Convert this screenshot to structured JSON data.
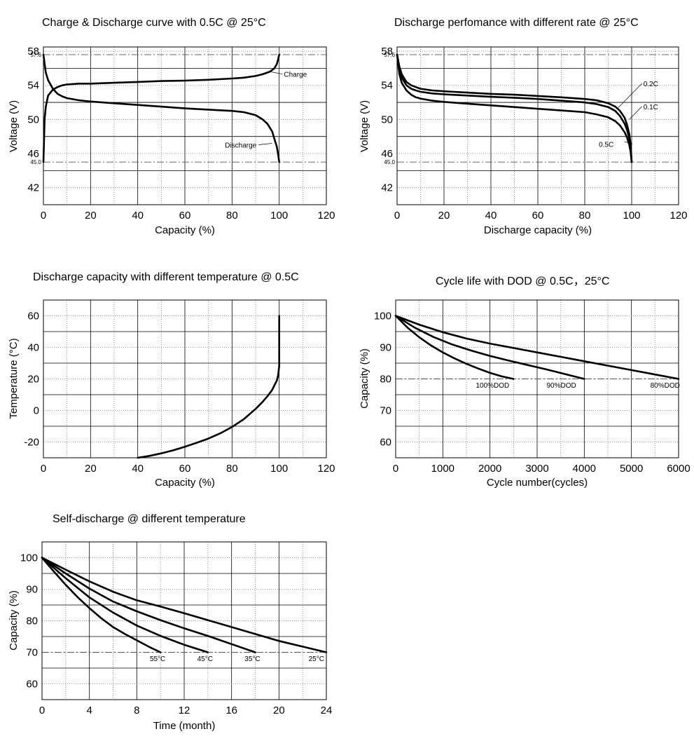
{
  "chart_data": [
    {
      "id": "c1",
      "type": "line",
      "title": "Charge & Discharge curve with 0.5C @ 25°C",
      "xlabel": "Capacity (%)",
      "ylabel": "Voltage (V)",
      "xlim": [
        0,
        120
      ],
      "ylim": [
        40,
        58.5
      ],
      "xticks": [
        0,
        20,
        40,
        60,
        80,
        100,
        120
      ],
      "yticks": [
        42,
        46,
        50,
        54,
        58
      ],
      "xminor": [
        10,
        30,
        50,
        70,
        90,
        110
      ],
      "yminor": [
        44,
        48,
        52,
        56
      ],
      "reflines": [
        {
          "value": 57.6,
          "label": "57.6"
        },
        {
          "value": 45.0,
          "label": "45.0"
        }
      ],
      "series": [
        {
          "name": "Charge",
          "label": "Charge",
          "label_at": [
            102,
            55
          ],
          "point_at": [
            96,
            55.6
          ],
          "x": [
            0,
            0.5,
            1,
            2,
            4,
            6,
            8,
            10,
            15,
            20,
            30,
            40,
            50,
            60,
            70,
            80,
            85,
            90,
            93,
            96,
            98,
            99,
            99.5,
            100
          ],
          "y": [
            45,
            50,
            51.5,
            52.8,
            53.5,
            53.8,
            54.0,
            54.1,
            54.2,
            54.2,
            54.3,
            54.4,
            54.5,
            54.55,
            54.65,
            54.8,
            54.9,
            55.1,
            55.3,
            55.6,
            56.0,
            56.5,
            57.0,
            57.6
          ]
        },
        {
          "name": "Discharge",
          "label": "Discharge",
          "label_at": [
            77,
            46.7
          ],
          "point_at": [
            97,
            47.2
          ],
          "x": [
            0,
            1,
            2,
            4,
            6,
            8,
            10,
            15,
            20,
            30,
            40,
            50,
            60,
            70,
            80,
            85,
            90,
            93,
            95,
            97,
            98,
            99,
            99.5,
            100
          ],
          "y": [
            57.6,
            55.5,
            54.6,
            53.6,
            53.0,
            52.7,
            52.5,
            52.25,
            52.1,
            51.9,
            51.7,
            51.5,
            51.3,
            51.15,
            51.0,
            50.85,
            50.5,
            50.0,
            49.5,
            48.6,
            47.7,
            46.8,
            46.0,
            45.0
          ]
        }
      ]
    },
    {
      "id": "c2",
      "type": "line",
      "title": "Discharge perfomance with different rate @ 25°C",
      "xlabel": "Discharge capacity (%)",
      "ylabel": "Voltage (V)",
      "xlim": [
        0,
        120
      ],
      "ylim": [
        40,
        58.5
      ],
      "xticks": [
        0,
        20,
        40,
        60,
        80,
        100,
        120
      ],
      "yticks": [
        42,
        46,
        50,
        54,
        58
      ],
      "xminor": [
        10,
        30,
        50,
        70,
        90,
        110
      ],
      "yminor": [
        44,
        48,
        52,
        56
      ],
      "reflines": [
        {
          "value": 57.6,
          "label": "57.6"
        },
        {
          "value": 45.0,
          "label": "45.0"
        }
      ],
      "series": [
        {
          "name": "0.2C",
          "label": "0.2C",
          "label_at": [
            105,
            53.9
          ],
          "point_at": [
            94,
            51.3
          ],
          "x": [
            0,
            1,
            2,
            4,
            6,
            8,
            10,
            15,
            20,
            30,
            40,
            50,
            60,
            70,
            80,
            85,
            90,
            93,
            95,
            97,
            98,
            99,
            99.5,
            100
          ],
          "y": [
            57.6,
            56.2,
            55.3,
            54.4,
            54.0,
            53.8,
            53.6,
            53.4,
            53.3,
            53.15,
            53.0,
            52.9,
            52.75,
            52.6,
            52.4,
            52.25,
            51.9,
            51.5,
            51.0,
            50.2,
            49.4,
            48.3,
            47.2,
            45.0
          ]
        },
        {
          "name": "0.1C",
          "label": "0.1C",
          "label_at": [
            105,
            51.2
          ],
          "point_at": [
            99,
            50.0
          ],
          "x": [
            0,
            1,
            2,
            4,
            6,
            8,
            10,
            15,
            20,
            30,
            40,
            50,
            60,
            70,
            80,
            85,
            90,
            93,
            95,
            97,
            98,
            99,
            99.5,
            100
          ],
          "y": [
            57.6,
            55.8,
            54.9,
            54.0,
            53.6,
            53.4,
            53.25,
            53.05,
            52.95,
            52.8,
            52.65,
            52.55,
            52.4,
            52.2,
            52.0,
            51.8,
            51.45,
            51.0,
            50.4,
            49.5,
            48.8,
            47.8,
            46.8,
            45.0
          ]
        },
        {
          "name": "0.5C",
          "label": "0.5C",
          "label_at": [
            86,
            46.8
          ],
          "point_at": [
            97,
            47.4
          ],
          "x": [
            0,
            1,
            2,
            4,
            6,
            8,
            10,
            15,
            20,
            30,
            40,
            50,
            60,
            70,
            80,
            85,
            90,
            93,
            95,
            97,
            98,
            99,
            99.5,
            100
          ],
          "y": [
            57.6,
            55.3,
            54.3,
            53.4,
            52.9,
            52.6,
            52.45,
            52.2,
            52.05,
            51.85,
            51.65,
            51.45,
            51.25,
            51.05,
            50.85,
            50.6,
            50.25,
            49.8,
            49.3,
            48.5,
            47.9,
            47.0,
            46.3,
            45.0
          ]
        }
      ]
    },
    {
      "id": "c3",
      "type": "line",
      "title": "Discharge capacity with different temperature @ 0.5C",
      "xlabel": "Capacity (%)",
      "ylabel": "Temperature (°C)",
      "xlim": [
        0,
        120
      ],
      "ylim": [
        -30,
        70
      ],
      "xticks": [
        0,
        20,
        40,
        60,
        80,
        100,
        120
      ],
      "yticks": [
        -20,
        0,
        20,
        40,
        60
      ],
      "xminor": [
        10,
        30,
        50,
        70,
        90,
        110
      ],
      "yminor": [
        -10,
        10,
        30,
        50
      ],
      "reflines": [],
      "series": [
        {
          "name": "",
          "label": "",
          "x": [
            40,
            45,
            50,
            55,
            60,
            65,
            70,
            75,
            80,
            85,
            90,
            93,
            95,
            97,
            98,
            99,
            99.5,
            100,
            100,
            100
          ],
          "y": [
            -30,
            -28.8,
            -27.2,
            -25.3,
            -23.0,
            -20.5,
            -17.8,
            -14.5,
            -10.5,
            -5.5,
            1.0,
            5.5,
            9.0,
            13.0,
            16.0,
            19.0,
            22.0,
            28.0,
            45.0,
            60.0
          ]
        }
      ]
    },
    {
      "id": "c4",
      "type": "line",
      "title": "Cycle life with DOD @ 0.5C，25°C",
      "xlabel": "Cycle number(cycles)",
      "ylabel": "Capacity (%)",
      "xlim": [
        0,
        6000
      ],
      "ylim": [
        55,
        105
      ],
      "xticks": [
        0,
        1000,
        2000,
        3000,
        4000,
        5000,
        6000
      ],
      "yticks": [
        60,
        70,
        80,
        90,
        100
      ],
      "xminor": [
        500,
        1500,
        2500,
        3500,
        4500,
        5500
      ],
      "yminor": [
        65,
        75,
        85,
        95
      ],
      "reflines": [
        {
          "value": 80,
          "label": ""
        }
      ],
      "series": [
        {
          "name": "100%DOD",
          "label": "100%DOD",
          "label_at": [
            1700,
            77.2
          ],
          "x": [
            0,
            250,
            500,
            750,
            1000,
            1250,
            1500,
            1750,
            2000,
            2250,
            2500
          ],
          "y": [
            100,
            96.3,
            93.2,
            90.6,
            88.4,
            86.5,
            84.8,
            83.3,
            81.9,
            80.8,
            80.0
          ]
        },
        {
          "name": "90%DOD",
          "label": "90%DOD",
          "label_at": [
            3200,
            77.2
          ],
          "x": [
            0,
            400,
            800,
            1200,
            1600,
            2000,
            2400,
            2800,
            3200,
            3600,
            4000
          ],
          "y": [
            100,
            96.3,
            93.3,
            90.9,
            89.0,
            87.3,
            85.8,
            84.4,
            83.0,
            81.5,
            80.0
          ]
        },
        {
          "name": "80%DOD",
          "label": "80%DOD",
          "label_at": [
            5400,
            77.2
          ],
          "x": [
            0,
            500,
            1000,
            1500,
            2000,
            2500,
            3000,
            3500,
            4000,
            4500,
            5000,
            5500,
            6000
          ],
          "y": [
            100,
            97.2,
            94.8,
            92.8,
            91.2,
            89.8,
            88.4,
            87.0,
            85.6,
            84.2,
            82.8,
            81.4,
            80.0
          ]
        }
      ]
    },
    {
      "id": "c5",
      "type": "line",
      "title": "Self-discharge @ different temperature",
      "xlabel": "Time (month)",
      "ylabel": "Capacity (%)",
      "xlim": [
        0,
        24
      ],
      "ylim": [
        55,
        105
      ],
      "xticks": [
        0,
        4,
        8,
        12,
        16,
        20,
        24
      ],
      "xminor": [
        2,
        6,
        10,
        14,
        18,
        22
      ],
      "yticks": [
        60,
        70,
        80,
        90,
        100
      ],
      "yminor": [
        65,
        75,
        85,
        95
      ],
      "reflines": [
        {
          "value": 70,
          "label": ""
        }
      ],
      "series": [
        {
          "name": "55°C",
          "label": "55°C",
          "label_at": [
            9.1,
            67.2
          ],
          "x": [
            0,
            1,
            2,
            3,
            4,
            5,
            6,
            7,
            8,
            9,
            10
          ],
          "y": [
            100,
            95.6,
            91.4,
            87.5,
            84.0,
            80.8,
            78.0,
            75.8,
            73.8,
            71.8,
            70.0
          ]
        },
        {
          "name": "45°C",
          "label": "45°C",
          "label_at": [
            13.1,
            67.2
          ],
          "x": [
            0,
            2,
            4,
            6,
            8,
            10,
            12,
            14
          ],
          "y": [
            100,
            93.5,
            87.4,
            82.6,
            78.5,
            75.2,
            72.4,
            70.0
          ]
        },
        {
          "name": "35°C",
          "label": "35°C",
          "label_at": [
            17.1,
            67.2
          ],
          "x": [
            0,
            2,
            4,
            6,
            8,
            10,
            12,
            14,
            16,
            18
          ],
          "y": [
            100,
            95.0,
            90.2,
            86.1,
            83.0,
            80.2,
            77.6,
            75.2,
            72.6,
            70.0
          ]
        },
        {
          "name": "25°C",
          "label": "25°C",
          "label_at": [
            22.5,
            67.2
          ],
          "x": [
            0,
            2,
            4,
            6,
            8,
            10,
            12,
            14,
            16,
            18,
            20,
            22,
            24
          ],
          "y": [
            100,
            96.2,
            92.5,
            89.2,
            86.5,
            84.5,
            82.4,
            80.2,
            78.0,
            75.8,
            73.6,
            71.8,
            70.0
          ]
        }
      ]
    }
  ]
}
